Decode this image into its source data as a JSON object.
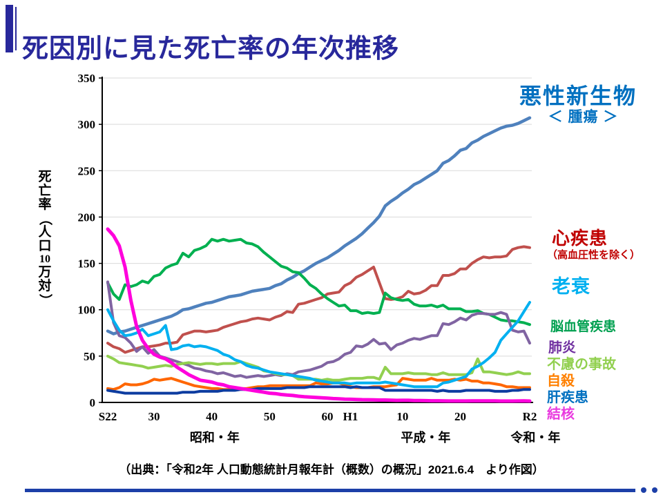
{
  "page": {
    "title": "死因別に見た死亡率の年次推移",
    "accent_color": "#28289B",
    "footer_color": "#1C3FA8"
  },
  "source_note": "（出典：「令和2年 人口動態統計月報年計（概数）の概況」2021.6.4　より作図）",
  "y_axis": {
    "title": "死亡率（人口10万対）",
    "title_chars": [
      "死",
      "亡",
      "率",
      "（",
      "人",
      "口",
      "10",
      "万",
      "対",
      "）"
    ],
    "ticks": [
      0,
      50,
      100,
      150,
      200,
      250,
      300,
      350
    ]
  },
  "x_axis": {
    "ticks": [
      {
        "label": "S22",
        "year": 1947
      },
      {
        "label": "30",
        "year": 1955
      },
      {
        "label": "40",
        "year": 1965
      },
      {
        "label": "50",
        "year": 1975
      },
      {
        "label": "60",
        "year": 1985
      },
      {
        "label": "H1",
        "year": 1989
      },
      {
        "label": "10",
        "year": 1998
      },
      {
        "label": "20",
        "year": 2008
      },
      {
        "label": "R2",
        "year": 2020
      }
    ],
    "era_labels": [
      {
        "label": "昭和・年",
        "year": 1965.5
      },
      {
        "label": "平成・年",
        "year": 2002
      },
      {
        "label": "令和・年",
        "year": 2021
      }
    ]
  },
  "legend": [
    {
      "key": "malignant",
      "label": "悪性新生物",
      "sublabel": "＜ 腫瘍 ＞",
      "color": "#0070C0"
    },
    {
      "key": "heart",
      "label": "心疾患",
      "sublabel": "（高血圧性を除く）",
      "color": "#C00000"
    },
    {
      "key": "senility",
      "label": "老衰",
      "color": "#00B0F0"
    },
    {
      "key": "cerebro",
      "label": "脳血管疾患",
      "color": "#00A050"
    },
    {
      "key": "pneumonia",
      "label": "肺炎",
      "color": "#7030A0"
    },
    {
      "key": "accidents",
      "label": "不慮の事故",
      "color": "#92D050"
    },
    {
      "key": "suicide",
      "label": "自殺",
      "color": "#FF8000"
    },
    {
      "key": "liver",
      "label": "肝疾患",
      "color": "#0070C0"
    },
    {
      "key": "tb",
      "label": "結核",
      "color": "#E93ADF"
    }
  ],
  "chart_data": {
    "type": "line",
    "title": "死因別に見た死亡率の年次推移",
    "ylabel": "死亡率（人口10万対）",
    "ylim": [
      0,
      350
    ],
    "x_start_year": 1947,
    "x_end_year": 2020,
    "grid": "horizontal",
    "gridline_color": "#D9D9D9",
    "series": [
      {
        "key": "malignant",
        "name": "悪性新生物＜腫瘍＞",
        "color": "#4F81BD",
        "width": 4.5,
        "values": [
          77,
          74,
          76,
          77,
          79,
          81,
          83,
          85,
          87,
          89,
          91,
          93,
          96,
          100,
          101,
          103,
          105,
          107,
          108,
          110,
          112,
          114,
          115,
          116,
          118,
          120,
          121,
          122,
          123,
          126,
          128,
          132,
          135,
          139,
          142,
          146,
          150,
          153,
          156,
          160,
          164,
          169,
          173,
          177,
          182,
          188,
          194,
          201,
          212,
          217,
          221,
          226,
          230,
          235,
          238,
          242,
          246,
          250,
          258,
          261,
          266,
          272,
          274,
          280,
          283,
          287,
          290,
          293,
          296,
          298,
          299,
          301,
          304,
          307
        ]
      },
      {
        "key": "heart",
        "name": "心疾患（高血圧性を除く）",
        "color": "#C0504D",
        "width": 4,
        "values": [
          64,
          60,
          58,
          54,
          56,
          58,
          60,
          60,
          61,
          62,
          64,
          64,
          65,
          73,
          75,
          77,
          77,
          76,
          77,
          78,
          81,
          83,
          85,
          87,
          88,
          90,
          91,
          90,
          89,
          92,
          94,
          98,
          97,
          106,
          107,
          109,
          111,
          113,
          117,
          118,
          119,
          126,
          129,
          135,
          138,
          142,
          146,
          129,
          112,
          111,
          112,
          114,
          120,
          117,
          118,
          121,
          126,
          126,
          137,
          137,
          139,
          144,
          144,
          150,
          154,
          157,
          156,
          157,
          157,
          158,
          165,
          167,
          168,
          167
        ]
      },
      {
        "key": "cerebro",
        "name": "脳血管疾患",
        "color": "#00B050",
        "width": 4,
        "values": [
          129,
          117,
          111,
          127,
          125,
          127,
          131,
          129,
          136,
          138,
          145,
          148,
          150,
          161,
          157,
          164,
          166,
          169,
          176,
          174,
          176,
          174,
          175,
          176,
          172,
          171,
          168,
          162,
          157,
          152,
          147,
          145,
          141,
          140,
          134,
          127,
          123,
          117,
          112,
          108,
          104,
          105,
          99,
          99,
          96,
          97,
          96,
          97,
          118,
          113,
          111,
          110,
          111,
          106,
          104,
          104,
          105,
          103,
          105,
          101,
          101,
          101,
          98,
          98,
          99,
          96,
          95,
          92,
          89,
          88,
          88,
          87,
          86,
          84
        ]
      },
      {
        "key": "pneumonia",
        "name": "肺炎",
        "color": "#8064A2",
        "width": 4,
        "values": [
          130,
          86,
          72,
          70,
          64,
          55,
          60,
          53,
          57,
          50,
          48,
          46,
          44,
          42,
          40,
          37,
          36,
          34,
          33,
          31,
          32,
          30,
          28,
          29,
          27,
          28,
          29,
          28,
          29,
          30,
          29,
          31,
          30,
          33,
          34,
          35,
          37,
          39,
          43,
          44,
          47,
          52,
          54,
          61,
          60,
          63,
          68,
          63,
          64,
          57,
          62,
          64,
          67,
          69,
          68,
          70,
          72,
          72,
          85,
          84,
          87,
          91,
          89,
          94,
          96,
          96,
          95,
          95,
          97,
          95,
          78,
          76,
          77,
          64
        ]
      },
      {
        "key": "accidents",
        "name": "不慮の事故",
        "color": "#92D050",
        "width": 4,
        "values": [
          50,
          47,
          43,
          42,
          41,
          40,
          39,
          37,
          38,
          39,
          40,
          39,
          41,
          42,
          43,
          42,
          41,
          42,
          42,
          41,
          42,
          42,
          42,
          44,
          42,
          40,
          38,
          34,
          33,
          31,
          30,
          30,
          29,
          25,
          25,
          25,
          25,
          24,
          25,
          24,
          24,
          25,
          26,
          26,
          26,
          27,
          27,
          25,
          38,
          31,
          31,
          31,
          32,
          31,
          31,
          31,
          30,
          30,
          32,
          30,
          30,
          30,
          30,
          32,
          47,
          33,
          33,
          32,
          31,
          30,
          31,
          33,
          31,
          31
        ]
      },
      {
        "key": "suicide",
        "name": "自殺",
        "color": "#FF6600",
        "width": 4,
        "values": [
          15,
          14,
          16,
          20,
          19,
          19,
          20,
          22,
          25,
          24,
          25,
          26,
          24,
          22,
          20,
          18,
          17,
          16,
          15,
          15,
          14,
          14,
          14,
          15,
          15,
          16,
          17,
          17,
          18,
          18,
          18,
          18,
          18,
          18,
          18,
          18,
          21,
          20,
          20,
          21,
          21,
          19,
          17,
          16,
          16,
          16,
          17,
          17,
          17,
          18,
          19,
          26,
          25,
          24,
          24,
          24,
          26,
          24,
          24,
          24,
          25,
          24,
          25,
          23,
          23,
          21,
          21,
          20,
          19,
          17,
          17,
          16,
          16,
          16
        ]
      },
      {
        "key": "liver",
        "name": "肝疾患",
        "color": "#0D3CA0",
        "width": 4,
        "values": [
          13,
          12,
          11,
          10,
          10,
          10,
          10,
          10,
          10,
          10,
          10,
          10,
          10,
          11,
          11,
          11,
          12,
          12,
          12,
          12,
          13,
          13,
          13,
          14,
          14,
          14,
          15,
          15,
          15,
          15,
          15,
          16,
          16,
          16,
          16,
          17,
          17,
          17,
          17,
          17,
          17,
          17,
          16,
          17,
          16,
          16,
          16,
          16,
          13,
          13,
          13,
          13,
          13,
          13,
          13,
          13,
          13,
          12,
          13,
          12,
          12,
          12,
          13,
          13,
          13,
          13,
          13,
          12,
          12,
          12,
          13,
          13,
          14,
          14
        ]
      },
      {
        "key": "senility",
        "name": "老衰",
        "color": "#00B0F0",
        "width": 4,
        "values": [
          100,
          88,
          78,
          72,
          73,
          75,
          79,
          72,
          74,
          76,
          83,
          57,
          58,
          61,
          62,
          60,
          61,
          60,
          58,
          56,
          52,
          50,
          46,
          44,
          40,
          38,
          37,
          35,
          33,
          32,
          31,
          30,
          29,
          28,
          27,
          26,
          24,
          23,
          22,
          21,
          21,
          21,
          20,
          21,
          21,
          21,
          21,
          21,
          22,
          21,
          20,
          19,
          18,
          17,
          17,
          17,
          17,
          17,
          21,
          22,
          24,
          26,
          28,
          36,
          39,
          43,
          48,
          54,
          67,
          74,
          81,
          88,
          98,
          108
        ]
      },
      {
        "key": "tb",
        "name": "結核",
        "color": "#FF00DC",
        "width": 5,
        "values": [
          187,
          180,
          169,
          146,
          110,
          82,
          67,
          58,
          52,
          49,
          47,
          43,
          38,
          34,
          30,
          27,
          24,
          23,
          22,
          20,
          19,
          17,
          16,
          15,
          14,
          13,
          12,
          11,
          10,
          9.5,
          8.6,
          8,
          7.5,
          6.7,
          6.2,
          5.8,
          5.4,
          5,
          4.6,
          4.2,
          3.9,
          3.6,
          3.4,
          3.2,
          3,
          2.9,
          2.8,
          2.6,
          2.6,
          2.4,
          2.2,
          2.3,
          2.3,
          2.1,
          2,
          1.9,
          1.8,
          1.8,
          1.7,
          1.6,
          1.6,
          1.6,
          1.6,
          1.7,
          1.7,
          1.7,
          1.7,
          1.7,
          1.5,
          1.5,
          1.5,
          1.6,
          1.7,
          1.5
        ]
      }
    ]
  }
}
